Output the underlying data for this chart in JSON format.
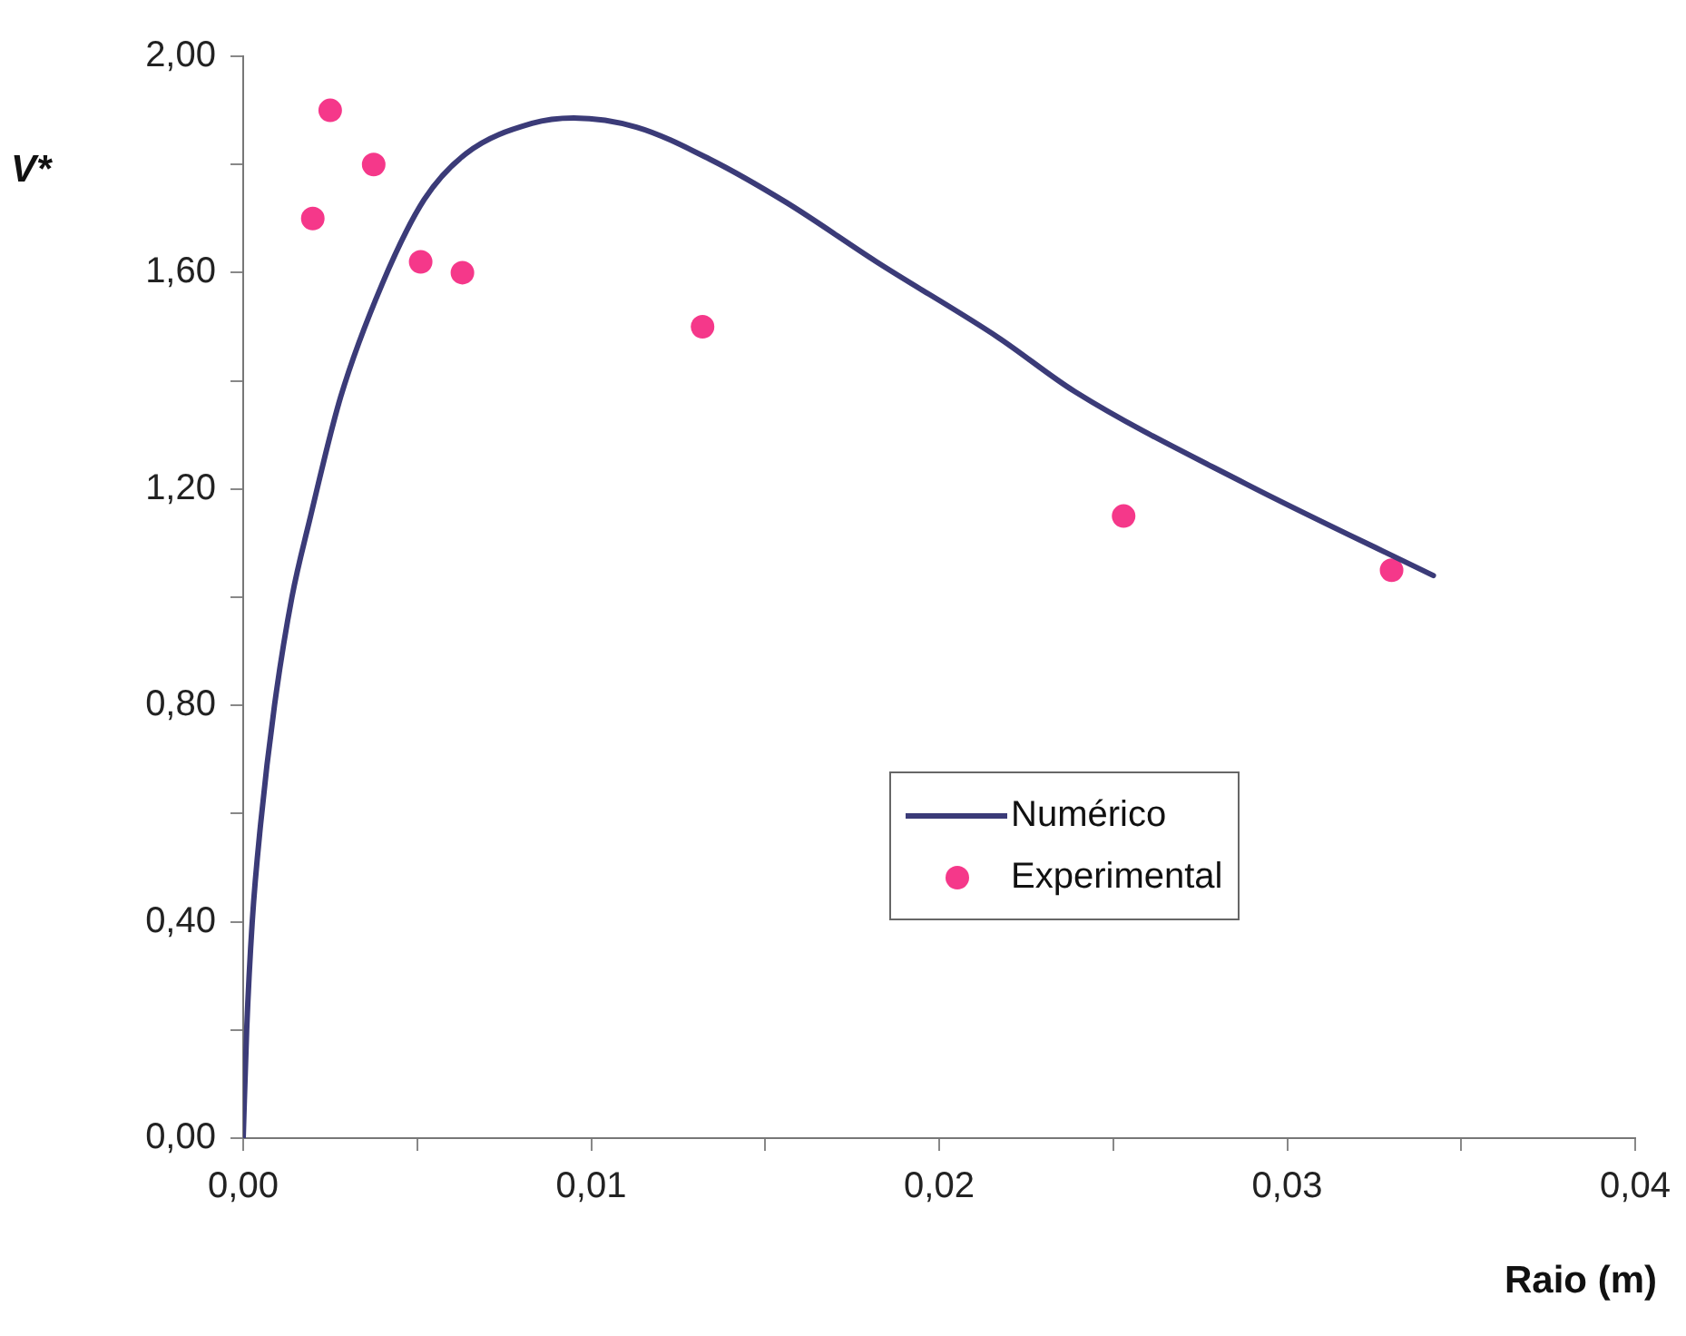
{
  "chart_data": {
    "type": "line",
    "xlabel": "Raio (m)",
    "ylabel": "V*",
    "xlim": [
      0,
      0.04
    ],
    "ylim": [
      0,
      2
    ],
    "xticks": [
      {
        "value": 0,
        "label": "0,00"
      },
      {
        "value": 0.005,
        "label": null
      },
      {
        "value": 0.01,
        "label": "0,01"
      },
      {
        "value": 0.015,
        "label": null
      },
      {
        "value": 0.02,
        "label": "0,02"
      },
      {
        "value": 0.025,
        "label": null
      },
      {
        "value": 0.03,
        "label": "0,03"
      },
      {
        "value": 0.035,
        "label": null
      },
      {
        "value": 0.04,
        "label": "0,04"
      }
    ],
    "yticks": [
      {
        "value": 0,
        "label": "0,00"
      },
      {
        "value": 0.2,
        "label": null
      },
      {
        "value": 0.4,
        "label": "0,40"
      },
      {
        "value": 0.6,
        "label": null
      },
      {
        "value": 0.8,
        "label": "0,80"
      },
      {
        "value": 1.0,
        "label": null
      },
      {
        "value": 1.2,
        "label": "1,20"
      },
      {
        "value": 1.4,
        "label": null
      },
      {
        "value": 1.6,
        "label": "1,60"
      },
      {
        "value": 1.8,
        "label": null
      },
      {
        "value": 2.0,
        "label": "2,00"
      }
    ],
    "grid": false,
    "legend": "bottom",
    "series": [
      {
        "name": "Numérico",
        "color": "#3b3b78",
        "marker": "none",
        "line_style": "solid",
        "x": [
          0,
          0.0001,
          0.00026,
          0.0005,
          0.0009,
          0.0014,
          0.0019,
          0.0028,
          0.004,
          0.0052,
          0.0064,
          0.0083,
          0.0095,
          0.0113,
          0.0134,
          0.0156,
          0.0182,
          0.0217,
          0.0239,
          0.0288,
          0.0342
        ],
        "values": [
          0,
          0.2,
          0.4,
          0.58,
          0.8,
          1.0,
          1.14,
          1.37,
          1.58,
          1.735,
          1.82,
          1.876,
          1.886,
          1.869,
          1.81,
          1.73,
          1.62,
          1.48,
          1.38,
          1.21,
          1.04
        ]
      },
      {
        "name": "Experimental",
        "type": "scatter",
        "color": "#f5388a",
        "marker": "circle",
        "x": [
          0.002,
          0.0025,
          0.00375,
          0.0051,
          0.0063,
          0.0132,
          0.0253,
          0.033
        ],
        "values": [
          1.7,
          1.9,
          1.8,
          1.62,
          1.6,
          1.5,
          1.15,
          1.05
        ]
      }
    ]
  }
}
